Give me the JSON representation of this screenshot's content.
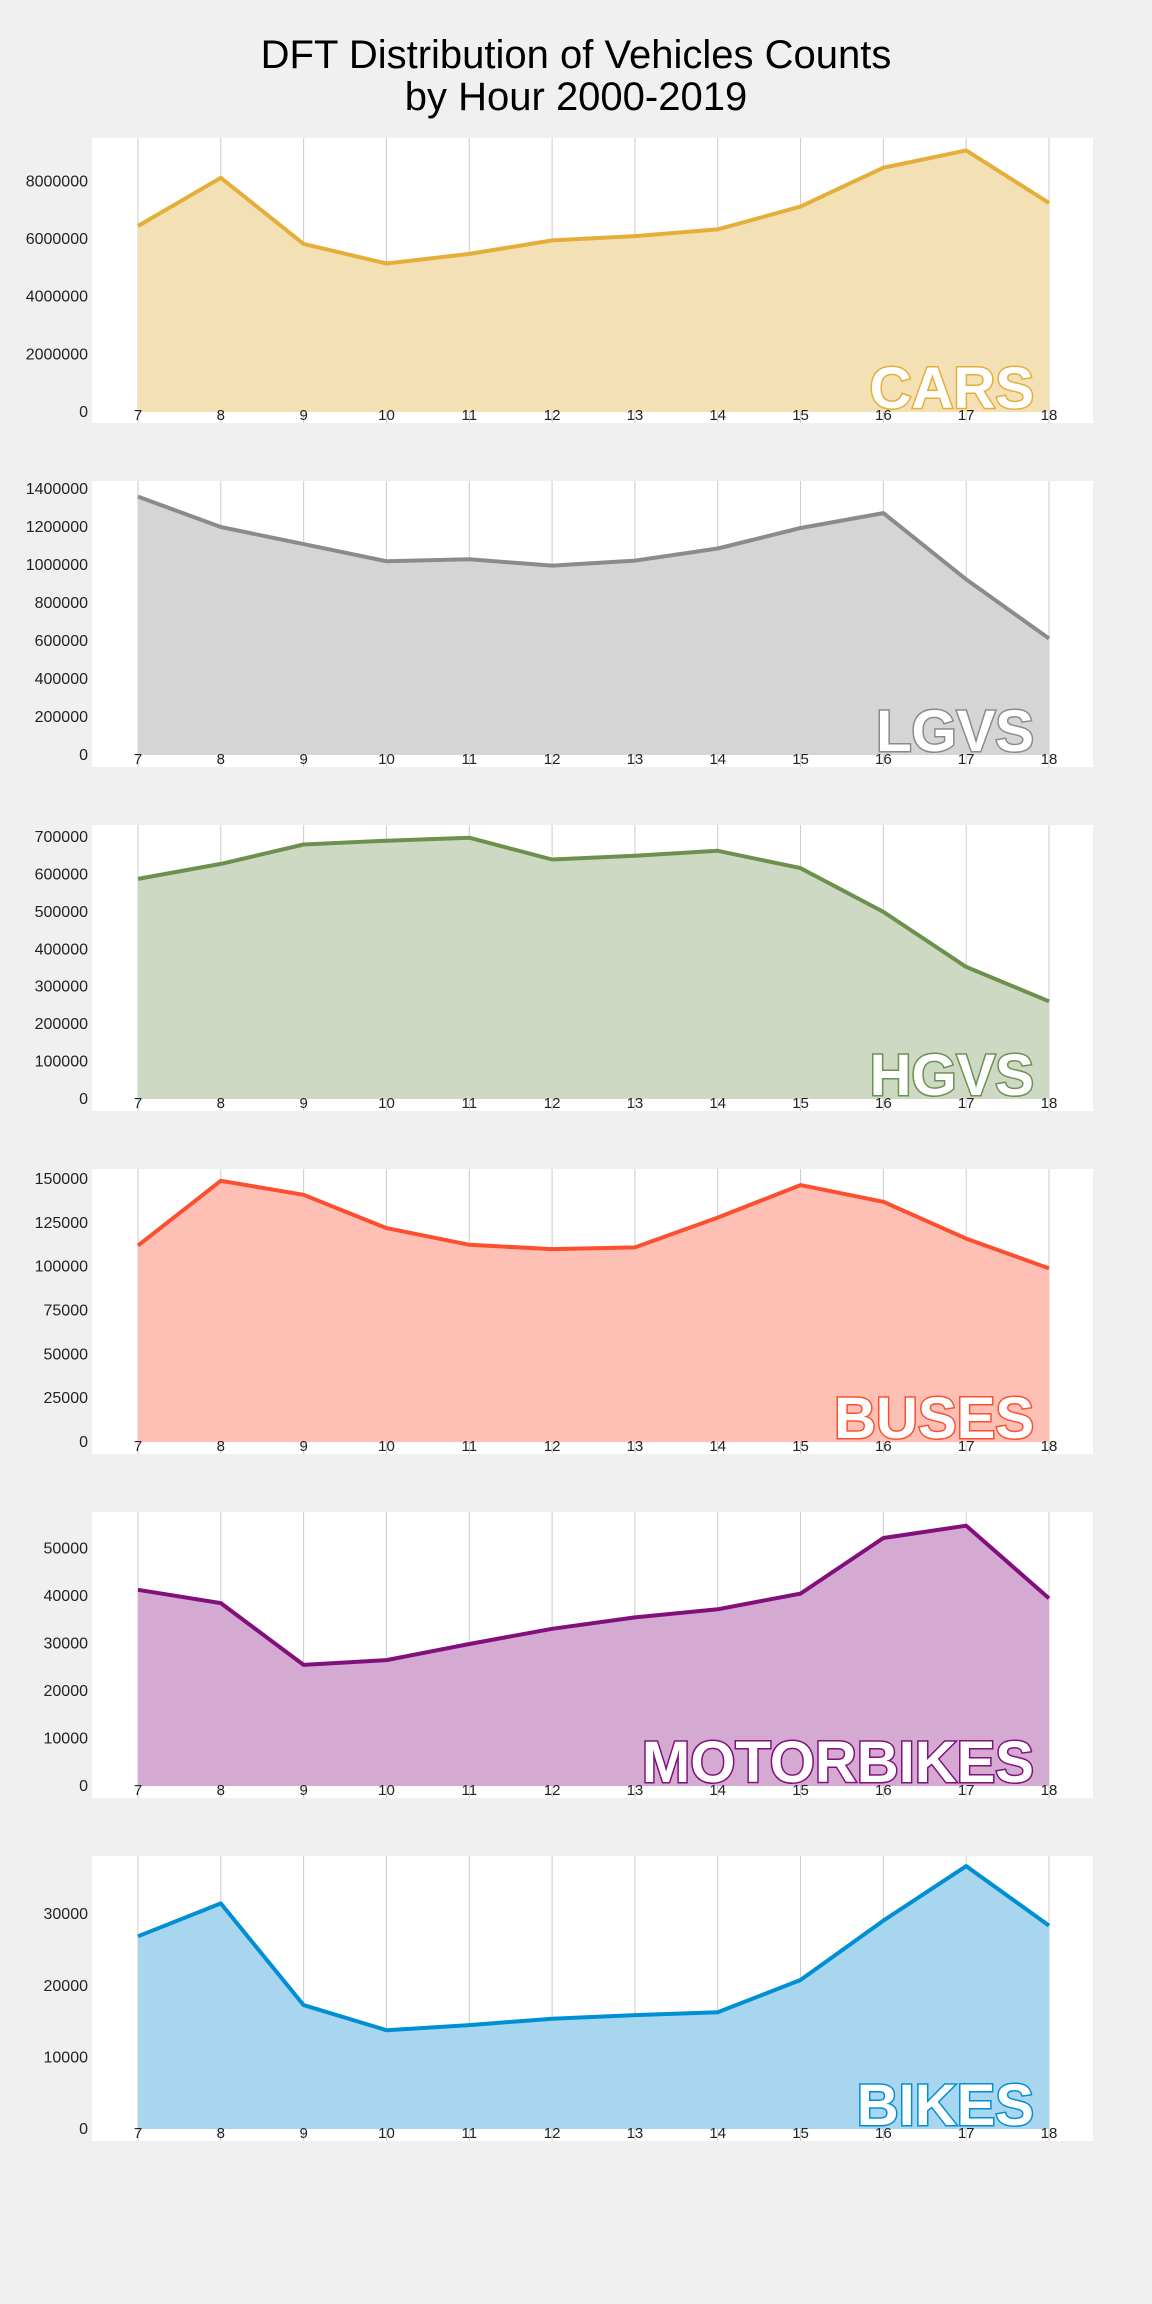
{
  "title_line1": "DFT Distribution of Vehicles Counts",
  "title_line2": "by Hour 2000-2019",
  "chart_data": [
    {
      "type": "area",
      "label": "CARS",
      "color": "#e5ae38",
      "fill": "#f4e0b5",
      "x": [
        7,
        8,
        9,
        10,
        11,
        12,
        13,
        14,
        15,
        16,
        17,
        18
      ],
      "values": [
        6450000,
        8120000,
        5830000,
        5150000,
        5480000,
        5950000,
        6100000,
        6330000,
        7120000,
        8470000,
        9070000,
        7250000
      ],
      "yticks": [
        0,
        2000000,
        4000000,
        6000000,
        8000000
      ],
      "ylim": [
        0,
        9500000
      ],
      "grid": true
    },
    {
      "type": "area",
      "label": "LGVS",
      "color": "#8b8b8b",
      "fill": "#d5d5d5",
      "x": [
        7,
        8,
        9,
        10,
        11,
        12,
        13,
        14,
        15,
        16,
        17,
        18
      ],
      "values": [
        1360000,
        1200000,
        1110000,
        1020000,
        1030000,
        997000,
        1023000,
        1087000,
        1195000,
        1273000,
        924000,
        613000
      ],
      "yticks": [
        0,
        200000,
        400000,
        600000,
        800000,
        1000000,
        1200000,
        1400000
      ],
      "ylim": [
        0,
        1400000
      ],
      "grid": true
    },
    {
      "type": "area",
      "label": "HGVS",
      "color": "#6d904f",
      "fill": "#cdd9c2",
      "x": [
        7,
        8,
        9,
        10,
        11,
        12,
        13,
        14,
        15,
        16,
        17,
        18
      ],
      "values": [
        588000,
        628000,
        680000,
        690000,
        698000,
        640000,
        650000,
        663000,
        617000,
        500000,
        353000,
        261000
      ],
      "yticks": [
        0,
        100000,
        200000,
        300000,
        400000,
        500000,
        600000,
        700000
      ],
      "ylim": [
        0,
        700000
      ],
      "grid": true
    },
    {
      "type": "area",
      "label": "BUSES",
      "color": "#fc4f30",
      "fill": "#fec0b4",
      "x": [
        7,
        8,
        9,
        10,
        11,
        12,
        13,
        14,
        15,
        16,
        17,
        18
      ],
      "values": [
        112000,
        149000,
        141000,
        122000,
        112500,
        110000,
        111000,
        128000,
        146500,
        137000,
        116000,
        99000
      ],
      "yticks": [
        0,
        25000,
        50000,
        75000,
        100000,
        125000,
        150000
      ],
      "ylim": [
        0,
        150000
      ],
      "grid": true
    },
    {
      "type": "area",
      "label": "MOTORBIKES",
      "color": "#810f7c",
      "fill": "#d4aad2",
      "x": [
        7,
        8,
        9,
        10,
        11,
        12,
        13,
        14,
        15,
        16,
        17,
        18
      ],
      "values": [
        41300,
        38500,
        25500,
        26500,
        29900,
        33100,
        35500,
        37200,
        40500,
        52200,
        54800,
        39500
      ],
      "yticks": [
        0,
        10000,
        20000,
        30000,
        40000,
        50000
      ],
      "ylim": [
        0,
        56000
      ],
      "grid": true
    },
    {
      "type": "area",
      "label": "BIKES",
      "color": "#008fd5",
      "fill": "#a8d6ef",
      "x": [
        7,
        8,
        9,
        10,
        11,
        12,
        13,
        14,
        15,
        16,
        17,
        18
      ],
      "values": [
        26900,
        31500,
        17300,
        13800,
        14500,
        15400,
        15900,
        16300,
        20800,
        29100,
        36700,
        28400
      ],
      "yticks": [
        0,
        10000,
        20000,
        30000
      ],
      "ylim": [
        0,
        37000
      ],
      "grid": true
    }
  ]
}
